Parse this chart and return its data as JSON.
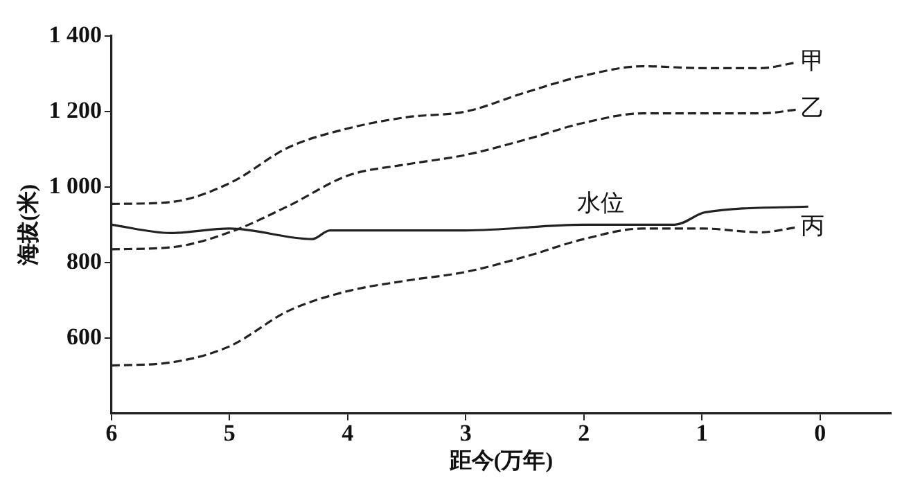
{
  "chart_data": {
    "type": "line",
    "xlabel": "距今(万年)",
    "ylabel": "海拔(米)",
    "xlim": [
      6,
      -0.6
    ],
    "xticks": [
      6,
      5,
      4,
      3,
      2,
      1,
      0
    ],
    "ylim": [
      400,
      1400
    ],
    "yticks": [
      {
        "value": 600,
        "label": "600"
      },
      {
        "value": 800,
        "label": "800"
      },
      {
        "value": 1000,
        "label": "1 000"
      },
      {
        "value": 1200,
        "label": "1 200"
      },
      {
        "value": 1400,
        "label": "1 400"
      }
    ],
    "grid": false,
    "legend": false,
    "marker": "none",
    "series": [
      {
        "name": "甲",
        "color": "#222222",
        "line_style": "dashed",
        "x": [
          6,
          5.5,
          5,
          4.5,
          4,
          3.5,
          3,
          2.5,
          2,
          1.5,
          1,
          0.5,
          0.2
        ],
        "values": [
          955,
          960,
          1010,
          1105,
          1155,
          1185,
          1200,
          1250,
          1295,
          1320,
          1315,
          1315,
          1330
        ]
      },
      {
        "name": "乙",
        "color": "#222222",
        "line_style": "dashed",
        "x": [
          6,
          5.5,
          5,
          4.5,
          4,
          3.5,
          3,
          2.5,
          2,
          1.5,
          1,
          0.5,
          0.2
        ],
        "values": [
          835,
          840,
          880,
          950,
          1030,
          1060,
          1085,
          1125,
          1170,
          1195,
          1195,
          1195,
          1205
        ]
      },
      {
        "name": "丙",
        "color": "#222222",
        "line_style": "dashed",
        "x": [
          6,
          5.5,
          5,
          4.5,
          4,
          3.5,
          3,
          2.5,
          2,
          1.5,
          1,
          0.5,
          0.2
        ],
        "values": [
          527,
          535,
          578,
          672,
          724,
          752,
          775,
          815,
          862,
          890,
          890,
          880,
          893
        ]
      },
      {
        "name": "水位",
        "color": "#222222",
        "line_style": "solid",
        "x": [
          6,
          5.5,
          5,
          4.3,
          4.15,
          3,
          2,
          1.23,
          0.97,
          0.1
        ],
        "values": [
          900,
          878,
          890,
          862,
          885,
          885,
          900,
          900,
          933,
          948
        ]
      }
    ]
  }
}
